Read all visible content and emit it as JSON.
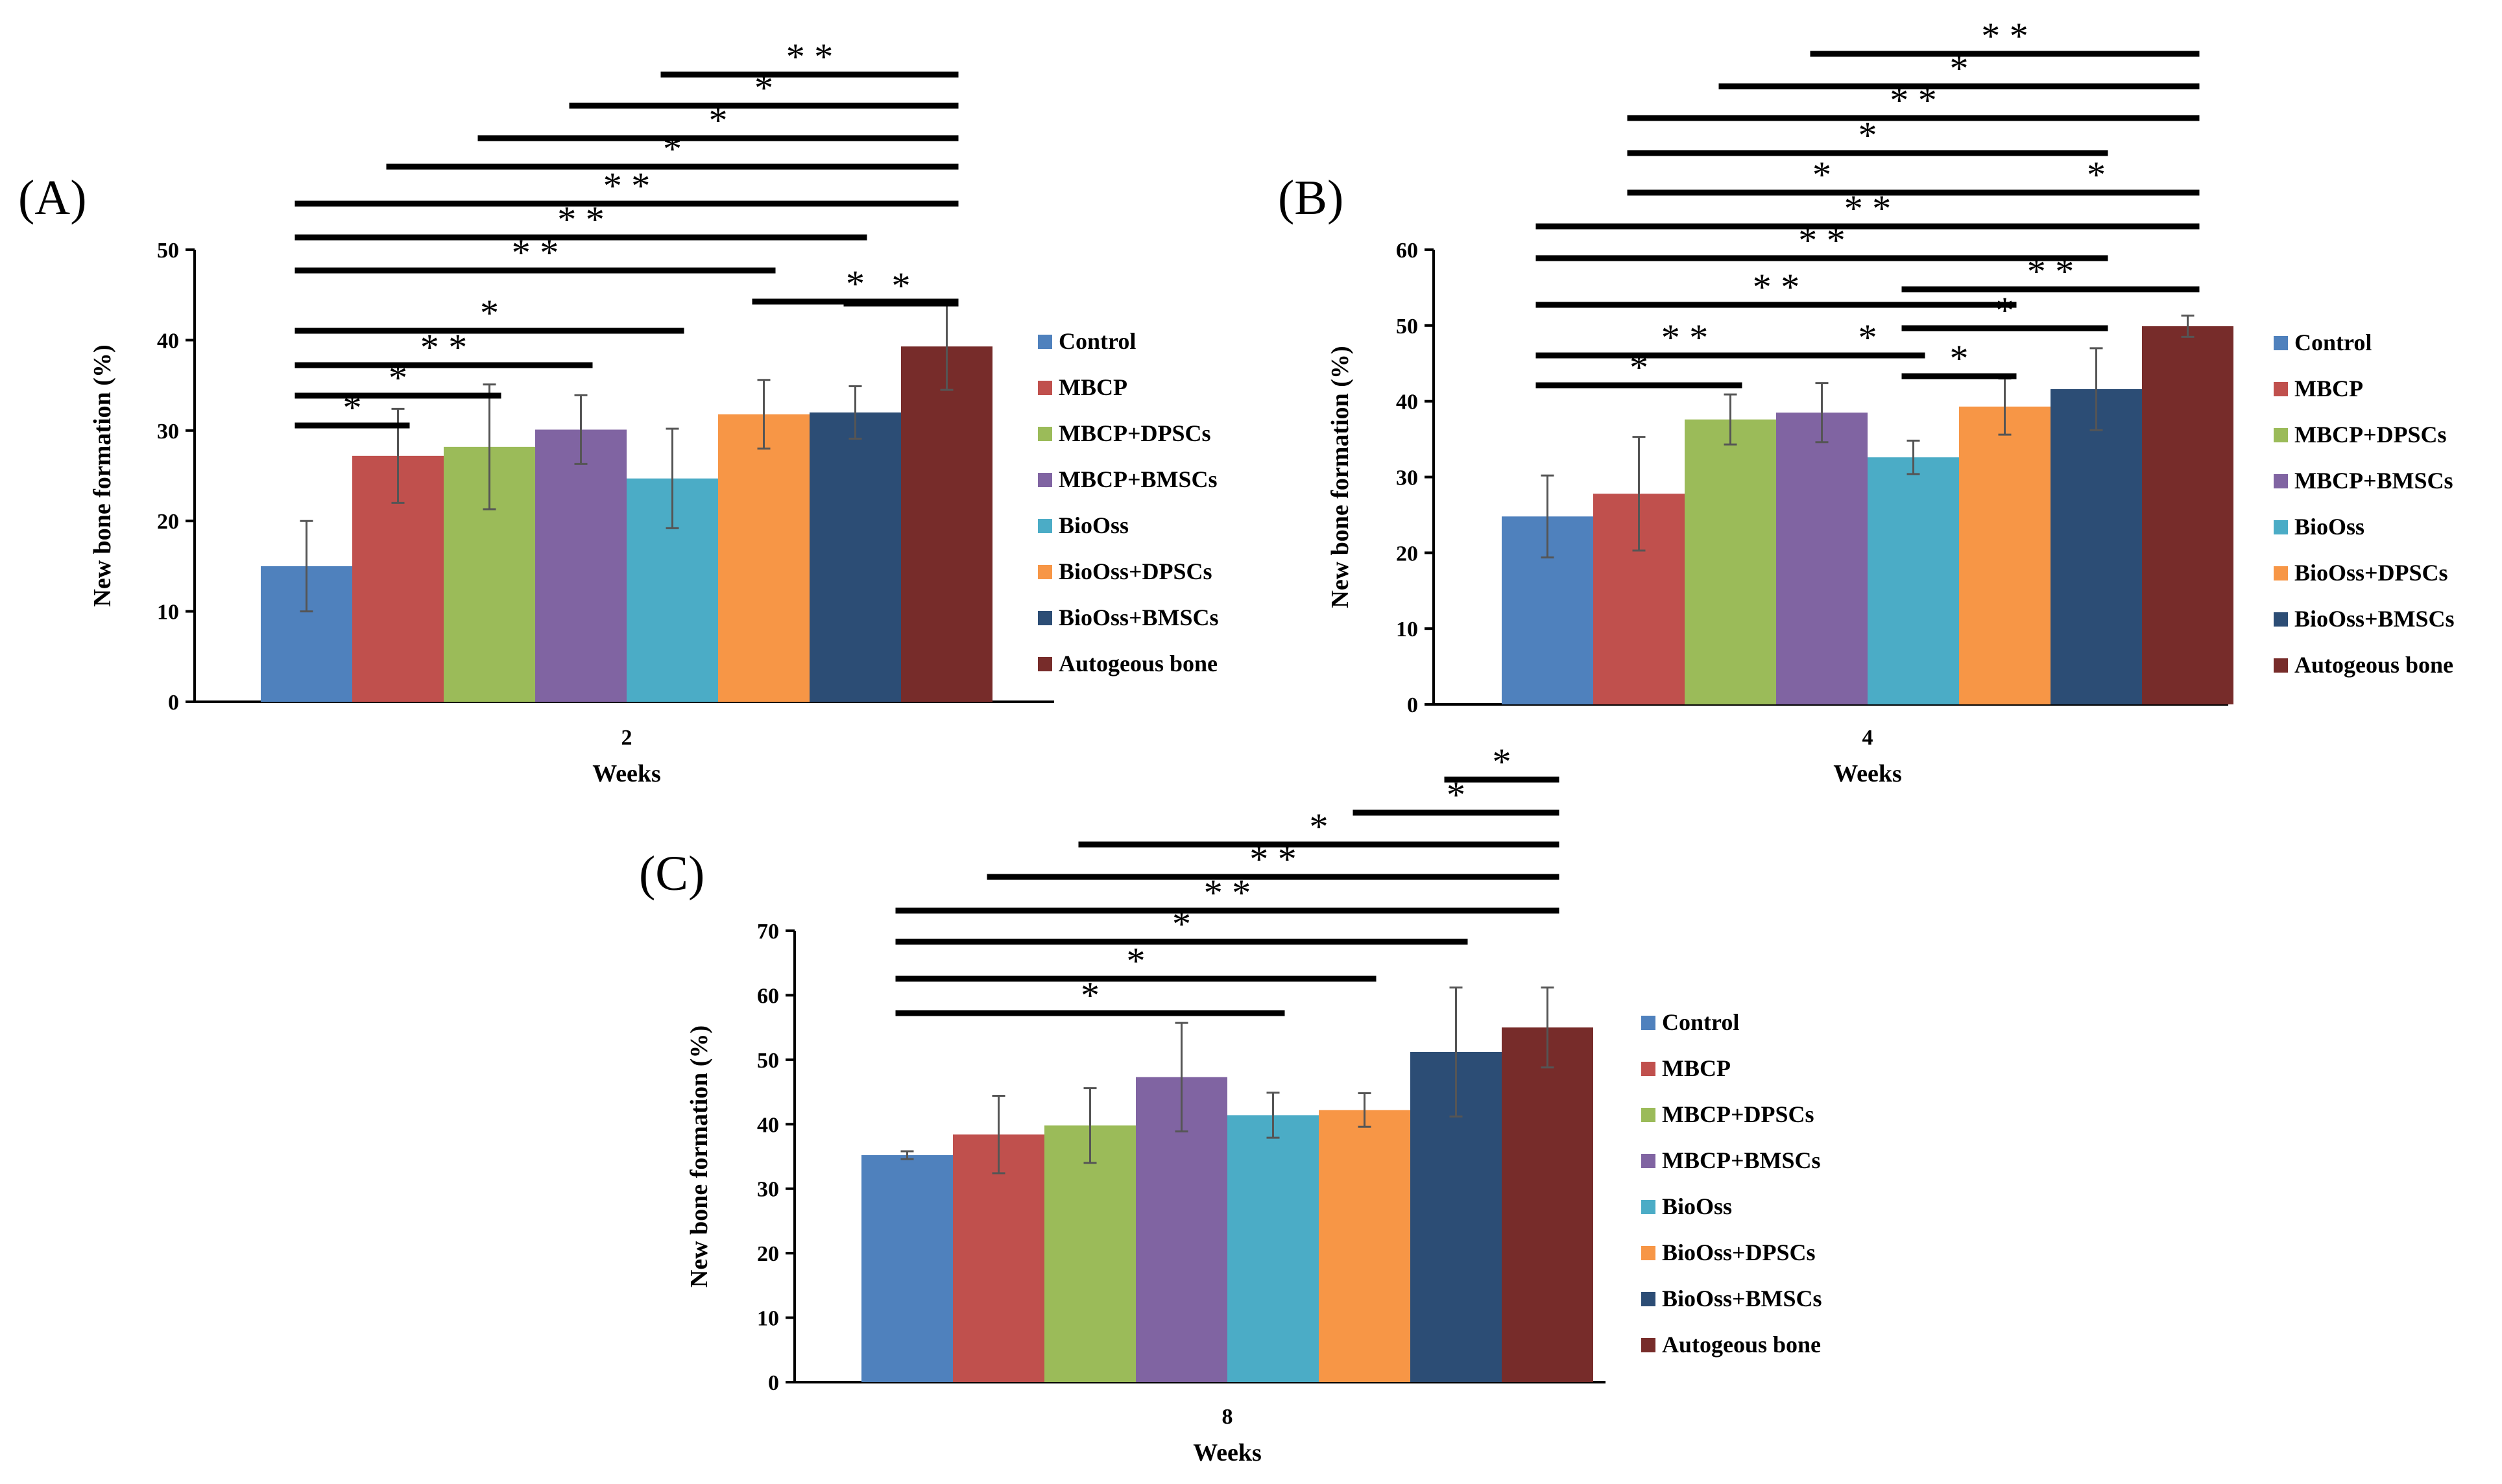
{
  "chart_data": [
    {
      "panel": "(A)",
      "type": "bar",
      "categories": [
        "2"
      ],
      "xlabel": "Weeks",
      "ylabel": "New bone formation  (%)",
      "ylim": [
        0,
        50
      ],
      "yticks": [
        0,
        10,
        20,
        30,
        40,
        50
      ],
      "series": [
        {
          "name": "Control",
          "values": [
            15.0
          ],
          "error": [
            5.0
          ]
        },
        {
          "name": "MBCP",
          "values": [
            27.2
          ],
          "error": [
            5.2
          ]
        },
        {
          "name": "MBCP+DPSCs",
          "values": [
            28.2
          ],
          "error": [
            6.9
          ]
        },
        {
          "name": "MBCP+BMSCs",
          "values": [
            30.1
          ],
          "error": [
            3.8
          ]
        },
        {
          "name": "BioOss",
          "values": [
            24.7
          ],
          "error": [
            5.5
          ]
        },
        {
          "name": "BioOss+DPSCs",
          "values": [
            31.8
          ],
          "error": [
            3.8
          ]
        },
        {
          "name": "BioOss+BMSCs",
          "values": [
            32.0
          ],
          "error": [
            2.9
          ]
        },
        {
          "name": "Autogeous bone",
          "values": [
            39.3
          ],
          "error": [
            4.8
          ]
        }
      ],
      "significance": [
        {
          "label": "* *",
          "from": 4,
          "to": 7
        },
        {
          "label": "*",
          "from": 3,
          "to": 7
        },
        {
          "label": "*",
          "from": 2,
          "to": 7
        },
        {
          "label": "*",
          "from": 1,
          "to": 7
        },
        {
          "label": "* *",
          "from": 0,
          "to": 7
        },
        {
          "label": "* *",
          "from": 0,
          "to": 6
        },
        {
          "label": "* *",
          "from": 0,
          "to": 5
        },
        {
          "label": "*",
          "from": 6,
          "to": 7
        },
        {
          "label": "*",
          "from": 0,
          "to": 4
        },
        {
          "label": "*",
          "from": 5,
          "to": 7
        },
        {
          "label": "* *",
          "from": 0,
          "to": 3
        },
        {
          "label": "*",
          "from": 0,
          "to": 2
        },
        {
          "label": "*",
          "from": 0,
          "to": 1
        }
      ]
    },
    {
      "panel": "(B)",
      "type": "bar",
      "categories": [
        "4"
      ],
      "xlabel": "Weeks",
      "ylabel": "New bone formation  (%)",
      "ylim": [
        0,
        60
      ],
      "yticks": [
        0,
        10,
        20,
        30,
        40,
        50,
        60
      ],
      "series": [
        {
          "name": "Control",
          "values": [
            24.8
          ],
          "error": [
            5.4
          ]
        },
        {
          "name": "MBCP",
          "values": [
            27.8
          ],
          "error": [
            7.5
          ]
        },
        {
          "name": "MBCP+DPSCs",
          "values": [
            37.6
          ],
          "error": [
            3.3
          ]
        },
        {
          "name": "MBCP+BMSCs",
          "values": [
            38.5
          ],
          "error": [
            3.9
          ]
        },
        {
          "name": "BioOss",
          "values": [
            32.6
          ],
          "error": [
            2.2
          ]
        },
        {
          "name": "BioOss+DPSCs",
          "values": [
            39.3
          ],
          "error": [
            3.7
          ]
        },
        {
          "name": "BioOss+BMSCs",
          "values": [
            41.6
          ],
          "error": [
            5.4
          ]
        },
        {
          "name": "Autogeous bone",
          "values": [
            49.9
          ],
          "error": [
            1.4
          ]
        }
      ],
      "significance": [
        {
          "label": "* *",
          "from": 3,
          "to": 7
        },
        {
          "label": "*",
          "from": 2,
          "to": 7
        },
        {
          "label": "* *",
          "from": 1,
          "to": 7
        },
        {
          "label": "*",
          "from": 1,
          "to": 6
        },
        {
          "label": "*",
          "from": 1,
          "to": 5
        },
        {
          "label": "*",
          "from": 5,
          "to": 7
        },
        {
          "label": "* *",
          "from": 0,
          "to": 7
        },
        {
          "label": "* *",
          "from": 0,
          "to": 6
        },
        {
          "label": "* *",
          "from": 0,
          "to": 5
        },
        {
          "label": "* *",
          "from": 4,
          "to": 7
        },
        {
          "label": "*",
          "from": 4,
          "to": 6
        },
        {
          "label": "* *",
          "from": 0,
          "to": 3
        },
        {
          "label": "*",
          "from": 3,
          "to": 4
        },
        {
          "label": "*",
          "from": 4,
          "to": 5
        },
        {
          "label": "*",
          "from": 0,
          "to": 2
        }
      ]
    },
    {
      "panel": "(C)",
      "type": "bar",
      "categories": [
        "8"
      ],
      "xlabel": "Weeks",
      "ylabel": "New bone formation  (%)",
      "ylim": [
        0,
        70
      ],
      "yticks": [
        0,
        10,
        20,
        30,
        40,
        50,
        60,
        70
      ],
      "series": [
        {
          "name": "Control",
          "values": [
            35.2
          ],
          "error": [
            0.6
          ]
        },
        {
          "name": "MBCP",
          "values": [
            38.4
          ],
          "error": [
            6.0
          ]
        },
        {
          "name": "MBCP+DPSCs",
          "values": [
            39.8
          ],
          "error": [
            5.8
          ]
        },
        {
          "name": "MBCP+BMSCs",
          "values": [
            47.3
          ],
          "error": [
            8.4
          ]
        },
        {
          "name": "BioOss",
          "values": [
            41.4
          ],
          "error": [
            3.5
          ]
        },
        {
          "name": "BioOss+DPSCs",
          "values": [
            42.2
          ],
          "error": [
            2.6
          ]
        },
        {
          "name": "BioOss+BMSCs",
          "values": [
            51.2
          ],
          "error": [
            10.0
          ]
        },
        {
          "name": "Autogeous bone",
          "values": [
            55.0
          ],
          "error": [
            6.2
          ]
        }
      ],
      "significance": [
        {
          "label": "*",
          "from": 6,
          "to": 7
        },
        {
          "label": "*",
          "from": 5,
          "to": 7
        },
        {
          "label": "*",
          "from": 2,
          "to": 7
        },
        {
          "label": "* *",
          "from": 1,
          "to": 7
        },
        {
          "label": "* *",
          "from": 0,
          "to": 7
        },
        {
          "label": "*",
          "from": 0,
          "to": 6
        },
        {
          "label": "*",
          "from": 0,
          "to": 5
        },
        {
          "label": "*",
          "from": 0,
          "to": 4
        }
      ]
    }
  ],
  "colors": [
    "#4f81bd",
    "#c0504d",
    "#9bbb59",
    "#8064a2",
    "#4bacc6",
    "#f79646",
    "#2c4d75",
    "#772c2a"
  ]
}
